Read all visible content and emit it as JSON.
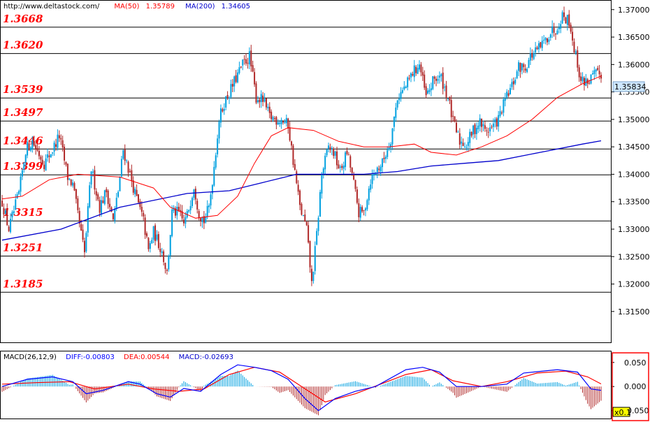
{
  "header": {
    "url": "http://www.deltastock.com/",
    "ma50_label": "MA(50)",
    "ma50_value": "1.35789",
    "ma200_label": "MA(200)",
    "ma200_value": "1.34605"
  },
  "macd_header": {
    "name": "MACD(26,12,9)",
    "diff": "DIFF:-0.00803",
    "dea": "DEA:0.00544",
    "macd": "MACD:-0.02693"
  },
  "current_price": "1.35834",
  "scale_box": "x0.1",
  "colors": {
    "up": "#00a0e0",
    "down": "#b02828",
    "ma50": "#ff0000",
    "ma200": "#0000cc",
    "level": "#ff0000",
    "macd_diff": "#0000ff",
    "macd_dea": "#ff0000",
    "macd_up": "#00a0e0",
    "macd_down": "#b02828",
    "price_box": "#cfe8ff",
    "scale_box": "#ffff00",
    "panel_border": "#ff0000"
  },
  "chart_data": {
    "type": "candlestick",
    "price_axis": {
      "ylim": [
        1.3095,
        1.3715
      ],
      "ticks": [
        "1.37000",
        "1.36500",
        "1.36000",
        "1.35500",
        "1.35000",
        "1.34500",
        "1.34000",
        "1.33500",
        "1.33000",
        "1.32500",
        "1.32000",
        "1.31500"
      ]
    },
    "macd_axis": {
      "ylim": [
        -0.065,
        0.07
      ],
      "ticks": [
        "0.050",
        "0.000",
        "-0.050"
      ]
    },
    "levels": [
      "1.3668",
      "1.3620",
      "1.3539",
      "1.3497",
      "1.3446",
      "1.3399",
      "1.3315",
      "1.3251",
      "1.3185"
    ],
    "path": [
      [
        0,
        1.335
      ],
      [
        4,
        1.33
      ],
      [
        10,
        1.3365
      ],
      [
        14,
        1.3445
      ],
      [
        18,
        1.346
      ],
      [
        25,
        1.342
      ],
      [
        30,
        1.3445
      ],
      [
        34,
        1.347
      ],
      [
        39,
        1.3395
      ],
      [
        42,
        1.338
      ],
      [
        49,
        1.3255
      ],
      [
        53,
        1.341
      ],
      [
        58,
        1.334
      ],
      [
        62,
        1.337
      ],
      [
        66,
        1.3315
      ],
      [
        69,
        1.337
      ],
      [
        72,
        1.3445
      ],
      [
        76,
        1.34
      ],
      [
        79,
        1.3365
      ],
      [
        84,
        1.3315
      ],
      [
        87,
        1.326
      ],
      [
        90,
        1.3295
      ],
      [
        95,
        1.326
      ],
      [
        98,
        1.322
      ],
      [
        101,
        1.333
      ],
      [
        105,
        1.333
      ],
      [
        108,
        1.331
      ],
      [
        110,
        1.3325
      ],
      [
        114,
        1.338
      ],
      [
        117,
        1.333
      ],
      [
        120,
        1.3315
      ],
      [
        123,
        1.334
      ],
      [
        126,
        1.3415
      ],
      [
        129,
        1.35
      ],
      [
        132,
        1.353
      ],
      [
        136,
        1.3555
      ],
      [
        139,
        1.3575
      ],
      [
        143,
        1.36
      ],
      [
        147,
        1.3615
      ],
      [
        151,
        1.354
      ],
      [
        155,
        1.3535
      ],
      [
        159,
        1.3505
      ],
      [
        163,
        1.35
      ],
      [
        166,
        1.35
      ],
      [
        170,
        1.349
      ],
      [
        173,
        1.3425
      ],
      [
        177,
        1.334
      ],
      [
        181,
        1.33
      ],
      [
        184,
        1.32
      ],
      [
        187,
        1.329
      ],
      [
        190,
        1.34
      ],
      [
        194,
        1.345
      ],
      [
        197,
        1.344
      ],
      [
        201,
        1.3405
      ],
      [
        205,
        1.344
      ],
      [
        208,
        1.34
      ],
      [
        212,
        1.333
      ],
      [
        215,
        1.333
      ],
      [
        219,
        1.339
      ],
      [
        223,
        1.341
      ],
      [
        226,
        1.342
      ],
      [
        231,
        1.3465
      ],
      [
        235,
        1.354
      ],
      [
        240,
        1.356
      ],
      [
        244,
        1.3585
      ],
      [
        248,
        1.36
      ],
      [
        252,
        1.354
      ],
      [
        257,
        1.3575
      ],
      [
        261,
        1.3575
      ],
      [
        265,
        1.354
      ],
      [
        268,
        1.3495
      ],
      [
        272,
        1.346
      ],
      [
        276,
        1.3455
      ],
      [
        280,
        1.348
      ],
      [
        284,
        1.3495
      ],
      [
        287,
        1.348
      ],
      [
        291,
        1.3485
      ],
      [
        295,
        1.35
      ],
      [
        299,
        1.3535
      ],
      [
        303,
        1.356
      ],
      [
        307,
        1.3595
      ],
      [
        311,
        1.3595
      ],
      [
        314,
        1.3615
      ],
      [
        318,
        1.3625
      ],
      [
        322,
        1.364
      ],
      [
        326,
        1.366
      ],
      [
        329,
        1.3665
      ],
      [
        333,
        1.369
      ],
      [
        337,
        1.368
      ],
      [
        340,
        1.363
      ],
      [
        344,
        1.357
      ],
      [
        348,
        1.357
      ],
      [
        352,
        1.358
      ],
      [
        356,
        1.3583
      ]
    ],
    "ma50_path": [
      [
        0,
        1.3355
      ],
      [
        12,
        1.336
      ],
      [
        28,
        1.339
      ],
      [
        45,
        1.34
      ],
      [
        70,
        1.3395
      ],
      [
        90,
        1.3375
      ],
      [
        100,
        1.334
      ],
      [
        115,
        1.332
      ],
      [
        128,
        1.3325
      ],
      [
        140,
        1.336
      ],
      [
        150,
        1.342
      ],
      [
        160,
        1.347
      ],
      [
        170,
        1.3485
      ],
      [
        185,
        1.348
      ],
      [
        200,
        1.346
      ],
      [
        215,
        1.345
      ],
      [
        230,
        1.345
      ],
      [
        245,
        1.3455
      ],
      [
        255,
        1.344
      ],
      [
        270,
        1.3435
      ],
      [
        285,
        1.345
      ],
      [
        300,
        1.347
      ],
      [
        315,
        1.35
      ],
      [
        330,
        1.354
      ],
      [
        345,
        1.3565
      ],
      [
        356,
        1.3579
      ]
    ],
    "ma200_path": [
      [
        0,
        1.328
      ],
      [
        35,
        1.33
      ],
      [
        70,
        1.334
      ],
      [
        110,
        1.3365
      ],
      [
        135,
        1.337
      ],
      [
        155,
        1.3385
      ],
      [
        175,
        1.34
      ],
      [
        195,
        1.34
      ],
      [
        215,
        1.34
      ],
      [
        235,
        1.3405
      ],
      [
        255,
        1.3415
      ],
      [
        275,
        1.342
      ],
      [
        295,
        1.3425
      ],
      [
        320,
        1.344
      ],
      [
        345,
        1.3455
      ],
      [
        356,
        1.3461
      ]
    ],
    "macd_diff_path": [
      [
        0,
        0.0
      ],
      [
        15,
        0.015
      ],
      [
        30,
        0.02
      ],
      [
        42,
        0.01
      ],
      [
        50,
        -0.015
      ],
      [
        60,
        -0.008
      ],
      [
        75,
        0.01
      ],
      [
        82,
        0.005
      ],
      [
        92,
        -0.015
      ],
      [
        100,
        -0.022
      ],
      [
        108,
        -0.004
      ],
      [
        118,
        -0.01
      ],
      [
        130,
        0.025
      ],
      [
        140,
        0.045
      ],
      [
        150,
        0.04
      ],
      [
        160,
        0.033
      ],
      [
        170,
        0.015
      ],
      [
        180,
        -0.025
      ],
      [
        188,
        -0.05
      ],
      [
        198,
        -0.025
      ],
      [
        210,
        -0.01
      ],
      [
        222,
        0.0
      ],
      [
        240,
        0.035
      ],
      [
        250,
        0.04
      ],
      [
        260,
        0.03
      ],
      [
        270,
        0.0
      ],
      [
        285,
        0.0
      ],
      [
        300,
        0.005
      ],
      [
        310,
        0.028
      ],
      [
        330,
        0.035
      ],
      [
        342,
        0.03
      ],
      [
        350,
        -0.005
      ],
      [
        356,
        -0.008
      ]
    ],
    "macd_dea_path": [
      [
        0,
        0.005
      ],
      [
        20,
        0.008
      ],
      [
        40,
        0.01
      ],
      [
        55,
        -0.005
      ],
      [
        75,
        0.005
      ],
      [
        90,
        -0.005
      ],
      [
        105,
        -0.01
      ],
      [
        120,
        -0.005
      ],
      [
        135,
        0.025
      ],
      [
        150,
        0.04
      ],
      [
        165,
        0.03
      ],
      [
        178,
        0.0
      ],
      [
        192,
        -0.032
      ],
      [
        210,
        -0.015
      ],
      [
        225,
        0.005
      ],
      [
        240,
        0.025
      ],
      [
        255,
        0.035
      ],
      [
        268,
        0.012
      ],
      [
        285,
        0.0
      ],
      [
        300,
        0.01
      ],
      [
        318,
        0.028
      ],
      [
        335,
        0.032
      ],
      [
        348,
        0.02
      ],
      [
        356,
        0.0054
      ]
    ]
  }
}
